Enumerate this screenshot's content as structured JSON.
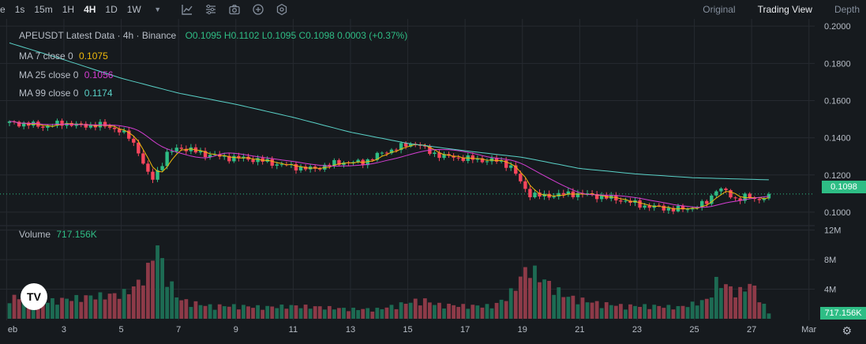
{
  "toolbar": {
    "timeframes": [
      "e",
      "1s",
      "15m",
      "1H",
      "4H",
      "1D",
      "1W"
    ],
    "active_timeframe": "4H",
    "views": [
      "Original",
      "Trading View",
      "Depth"
    ],
    "active_view": "Trading View"
  },
  "legend": {
    "title": "APEUSDT Latest Data · 4h · Binance",
    "ohlc": "O0.1095 H0.1102 L0.1095 C0.1098 0.0003 (+0.37%)",
    "ma7_label": "MA 7 close 0",
    "ma7_value": "0.1075",
    "ma25_label": "MA 25 close 0",
    "ma25_value": "0.1056",
    "ma99_label": "MA 99 close 0",
    "ma99_value": "0.1174",
    "volume_label": "Volume",
    "volume_value": "717.156K"
  },
  "price_tag": "0.1098",
  "volume_tag": "717.156K",
  "colors": {
    "background": "#161a1e",
    "up": "#2ebd85",
    "down": "#f6465d",
    "ma7": "#f0b90b",
    "ma25": "#d43ed2",
    "ma99": "#5ad2c8"
  },
  "chart_data": {
    "type": "candlestick",
    "symbol": "APEUSDT",
    "interval": "4h",
    "x_ticks": [
      "eb",
      "3",
      "5",
      "7",
      "9",
      "11",
      "13",
      "15",
      "17",
      "19",
      "21",
      "23",
      "25",
      "27",
      "Mar"
    ],
    "x_tick_days": [
      1,
      3,
      5,
      7,
      9,
      11,
      13,
      15,
      17,
      19,
      21,
      23,
      25,
      27,
      29
    ],
    "x_range_days": [
      1.1,
      29.2
    ],
    "price_ticks": [
      "0.1000",
      "0.1200",
      "0.1400",
      "0.1600",
      "0.1800",
      "0.2000"
    ],
    "price_ylim": [
      0.097,
      0.2005
    ],
    "volume_ticks": [
      "4M",
      "8M",
      "12M"
    ],
    "volume_ylim": [
      0,
      12.6
    ],
    "last_price": 0.1098,
    "close_path": [
      [
        1.1,
        0.148
      ],
      [
        1.7,
        0.1475
      ],
      [
        2.3,
        0.146
      ],
      [
        3.0,
        0.148
      ],
      [
        3.6,
        0.1465
      ],
      [
        4.2,
        0.147
      ],
      [
        4.8,
        0.145
      ],
      [
        5.3,
        0.14
      ],
      [
        5.6,
        0.133
      ],
      [
        5.85,
        0.122
      ],
      [
        6.1,
        0.118
      ],
      [
        6.3,
        0.123
      ],
      [
        6.6,
        0.131
      ],
      [
        7.0,
        0.135
      ],
      [
        7.5,
        0.133
      ],
      [
        8.0,
        0.131
      ],
      [
        8.6,
        0.1295
      ],
      [
        9.2,
        0.129
      ],
      [
        9.8,
        0.128
      ],
      [
        10.4,
        0.126
      ],
      [
        11.0,
        0.1245
      ],
      [
        11.7,
        0.123
      ],
      [
        12.2,
        0.1255
      ],
      [
        12.8,
        0.127
      ],
      [
        13.4,
        0.1265
      ],
      [
        14.0,
        0.131
      ],
      [
        14.6,
        0.1345
      ],
      [
        15.3,
        0.1375
      ],
      [
        15.7,
        0.1325
      ],
      [
        16.3,
        0.13
      ],
      [
        17.0,
        0.129
      ],
      [
        17.6,
        0.128
      ],
      [
        18.2,
        0.1275
      ],
      [
        18.6,
        0.1245
      ],
      [
        18.9,
        0.117
      ],
      [
        19.2,
        0.11
      ],
      [
        19.7,
        0.1085
      ],
      [
        20.3,
        0.1095
      ],
      [
        20.9,
        0.11
      ],
      [
        21.5,
        0.109
      ],
      [
        22.1,
        0.1075
      ],
      [
        22.6,
        0.106
      ],
      [
        23.2,
        0.1035
      ],
      [
        23.8,
        0.1025
      ],
      [
        24.3,
        0.1015
      ],
      [
        24.8,
        0.102
      ],
      [
        25.2,
        0.1035
      ],
      [
        25.5,
        0.106
      ],
      [
        25.75,
        0.1125
      ],
      [
        26.0,
        0.112
      ],
      [
        26.4,
        0.107
      ],
      [
        26.8,
        0.1085
      ],
      [
        27.2,
        0.1065
      ],
      [
        27.6,
        0.1098
      ]
    ],
    "ma99_path": [
      [
        1.1,
        0.191
      ],
      [
        3.0,
        0.182
      ],
      [
        5.0,
        0.172
      ],
      [
        7.0,
        0.164
      ],
      [
        9.0,
        0.158
      ],
      [
        11.0,
        0.151
      ],
      [
        13.0,
        0.143
      ],
      [
        15.0,
        0.137
      ],
      [
        17.0,
        0.133
      ],
      [
        19.0,
        0.1295
      ],
      [
        21.0,
        0.1235
      ],
      [
        23.0,
        0.1205
      ],
      [
        25.0,
        0.1185
      ],
      [
        27.6,
        0.1174
      ]
    ],
    "series": [
      {
        "name": "MA 7 close 0",
        "last": 0.1075
      },
      {
        "name": "MA 25 close 0",
        "last": 0.1056
      },
      {
        "name": "MA 99 close 0",
        "last": 0.1174
      }
    ],
    "volume_path_m": [
      [
        1.1,
        3.5
      ],
      [
        2.0,
        2.5
      ],
      [
        3.0,
        3.0
      ],
      [
        4.0,
        3.5
      ],
      [
        5.0,
        3.8
      ],
      [
        5.5,
        5.0
      ],
      [
        6.0,
        8.0
      ],
      [
        6.2,
        12.3
      ],
      [
        6.5,
        7.5
      ],
      [
        7.0,
        3.0
      ],
      [
        8.0,
        2.0
      ],
      [
        9.0,
        2.0
      ],
      [
        10.0,
        1.8
      ],
      [
        11.0,
        2.0
      ],
      [
        12.0,
        1.8
      ],
      [
        13.0,
        1.5
      ],
      [
        14.0,
        1.5
      ],
      [
        15.0,
        2.5
      ],
      [
        15.5,
        3.0
      ],
      [
        16.0,
        2.2
      ],
      [
        17.0,
        2.0
      ],
      [
        18.0,
        2.0
      ],
      [
        18.5,
        3.5
      ],
      [
        18.9,
        6.0
      ],
      [
        19.2,
        8.2
      ],
      [
        19.6,
        6.5
      ],
      [
        20.5,
        3.5
      ],
      [
        21.5,
        2.5
      ],
      [
        22.5,
        2.0
      ],
      [
        23.5,
        2.0
      ],
      [
        24.5,
        1.8
      ],
      [
        25.5,
        3.0
      ],
      [
        25.8,
        6.0
      ],
      [
        26.5,
        4.0
      ],
      [
        27.0,
        5.5
      ],
      [
        27.6,
        0.717
      ]
    ]
  }
}
